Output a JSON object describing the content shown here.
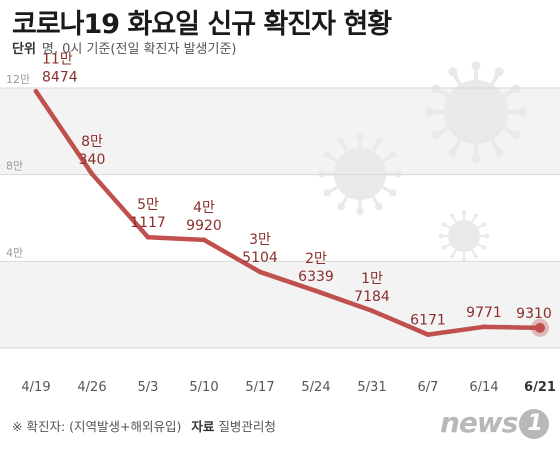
{
  "title": "코로나19 화요일 신규 확진자 현황",
  "subtitle": {
    "unit_label": "단위",
    "unit_text": "명, 0시 기준(전일 확진자 발생기준)"
  },
  "colors": {
    "line": "#c0504d",
    "label": "#8a2f2c",
    "band": "#f3f3f3",
    "grid": "#d9d9d9",
    "axis_text": "#9a9a9a",
    "decor": "#e9e9e9"
  },
  "chart_data": {
    "type": "line",
    "title": "코로나19 화요일 신규 확진자 현황",
    "xlabel": "",
    "ylabel": "",
    "x": [
      "4/19",
      "4/26",
      "5/3",
      "5/10",
      "5/17",
      "5/24",
      "5/31",
      "6/7",
      "6/14",
      "6/21"
    ],
    "series": [
      {
        "values": [
          118474,
          80340,
          51117,
          49920,
          35104,
          26339,
          17184,
          6171,
          9771,
          9310
        ]
      }
    ],
    "point_labels": [
      [
        "11만",
        "8474"
      ],
      [
        "8만",
        "340"
      ],
      [
        "5만",
        "1117"
      ],
      [
        "4만",
        "9920"
      ],
      [
        "3만",
        "5104"
      ],
      [
        "2만",
        "6339"
      ],
      [
        "1만",
        "7184"
      ],
      [
        "",
        "6171"
      ],
      [
        "",
        "9771"
      ],
      [
        "",
        "9310"
      ]
    ],
    "yticks": [
      {
        "value": 120000,
        "label": "12만"
      },
      {
        "value": 80000,
        "label": "8만"
      },
      {
        "value": 40000,
        "label": "4만"
      }
    ],
    "ylim": [
      0,
      120000
    ],
    "grid": true,
    "highlight_last": true
  },
  "footnote": {
    "note": "※ 확진자: (지역발생+해외유입)",
    "source_label": "자료",
    "source": "질병관리청"
  },
  "logo": {
    "text": "news",
    "badge": "1"
  }
}
